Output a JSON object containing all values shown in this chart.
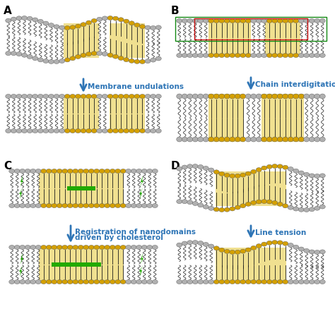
{
  "panel_labels": [
    "A",
    "B",
    "C",
    "D"
  ],
  "panel_label_color": "#000000",
  "panel_label_fontsize": 11,
  "arrow_color": "#2E75B6",
  "arrow_label_color": "#2E75B6",
  "arrow_label_fontsize": 7.5,
  "labels": {
    "A": "Membrane undulations",
    "B": "Chain interdigitations",
    "C": "Registration of nanodomains\ndriven by cholesterol",
    "D": "Line tension"
  },
  "lipid_tail_color": "#1A1A1A",
  "head_color": "#B0B0B0",
  "lo_fill": "#F0E090",
  "chol_color": "#D4A000",
  "green_color": "#22AA00",
  "red_box_color": "#CC1111",
  "green_box_color": "#118811",
  "fig_width": 4.74,
  "fig_height": 4.56,
  "dpi": 100,
  "bg_color": "#FFFFFF"
}
